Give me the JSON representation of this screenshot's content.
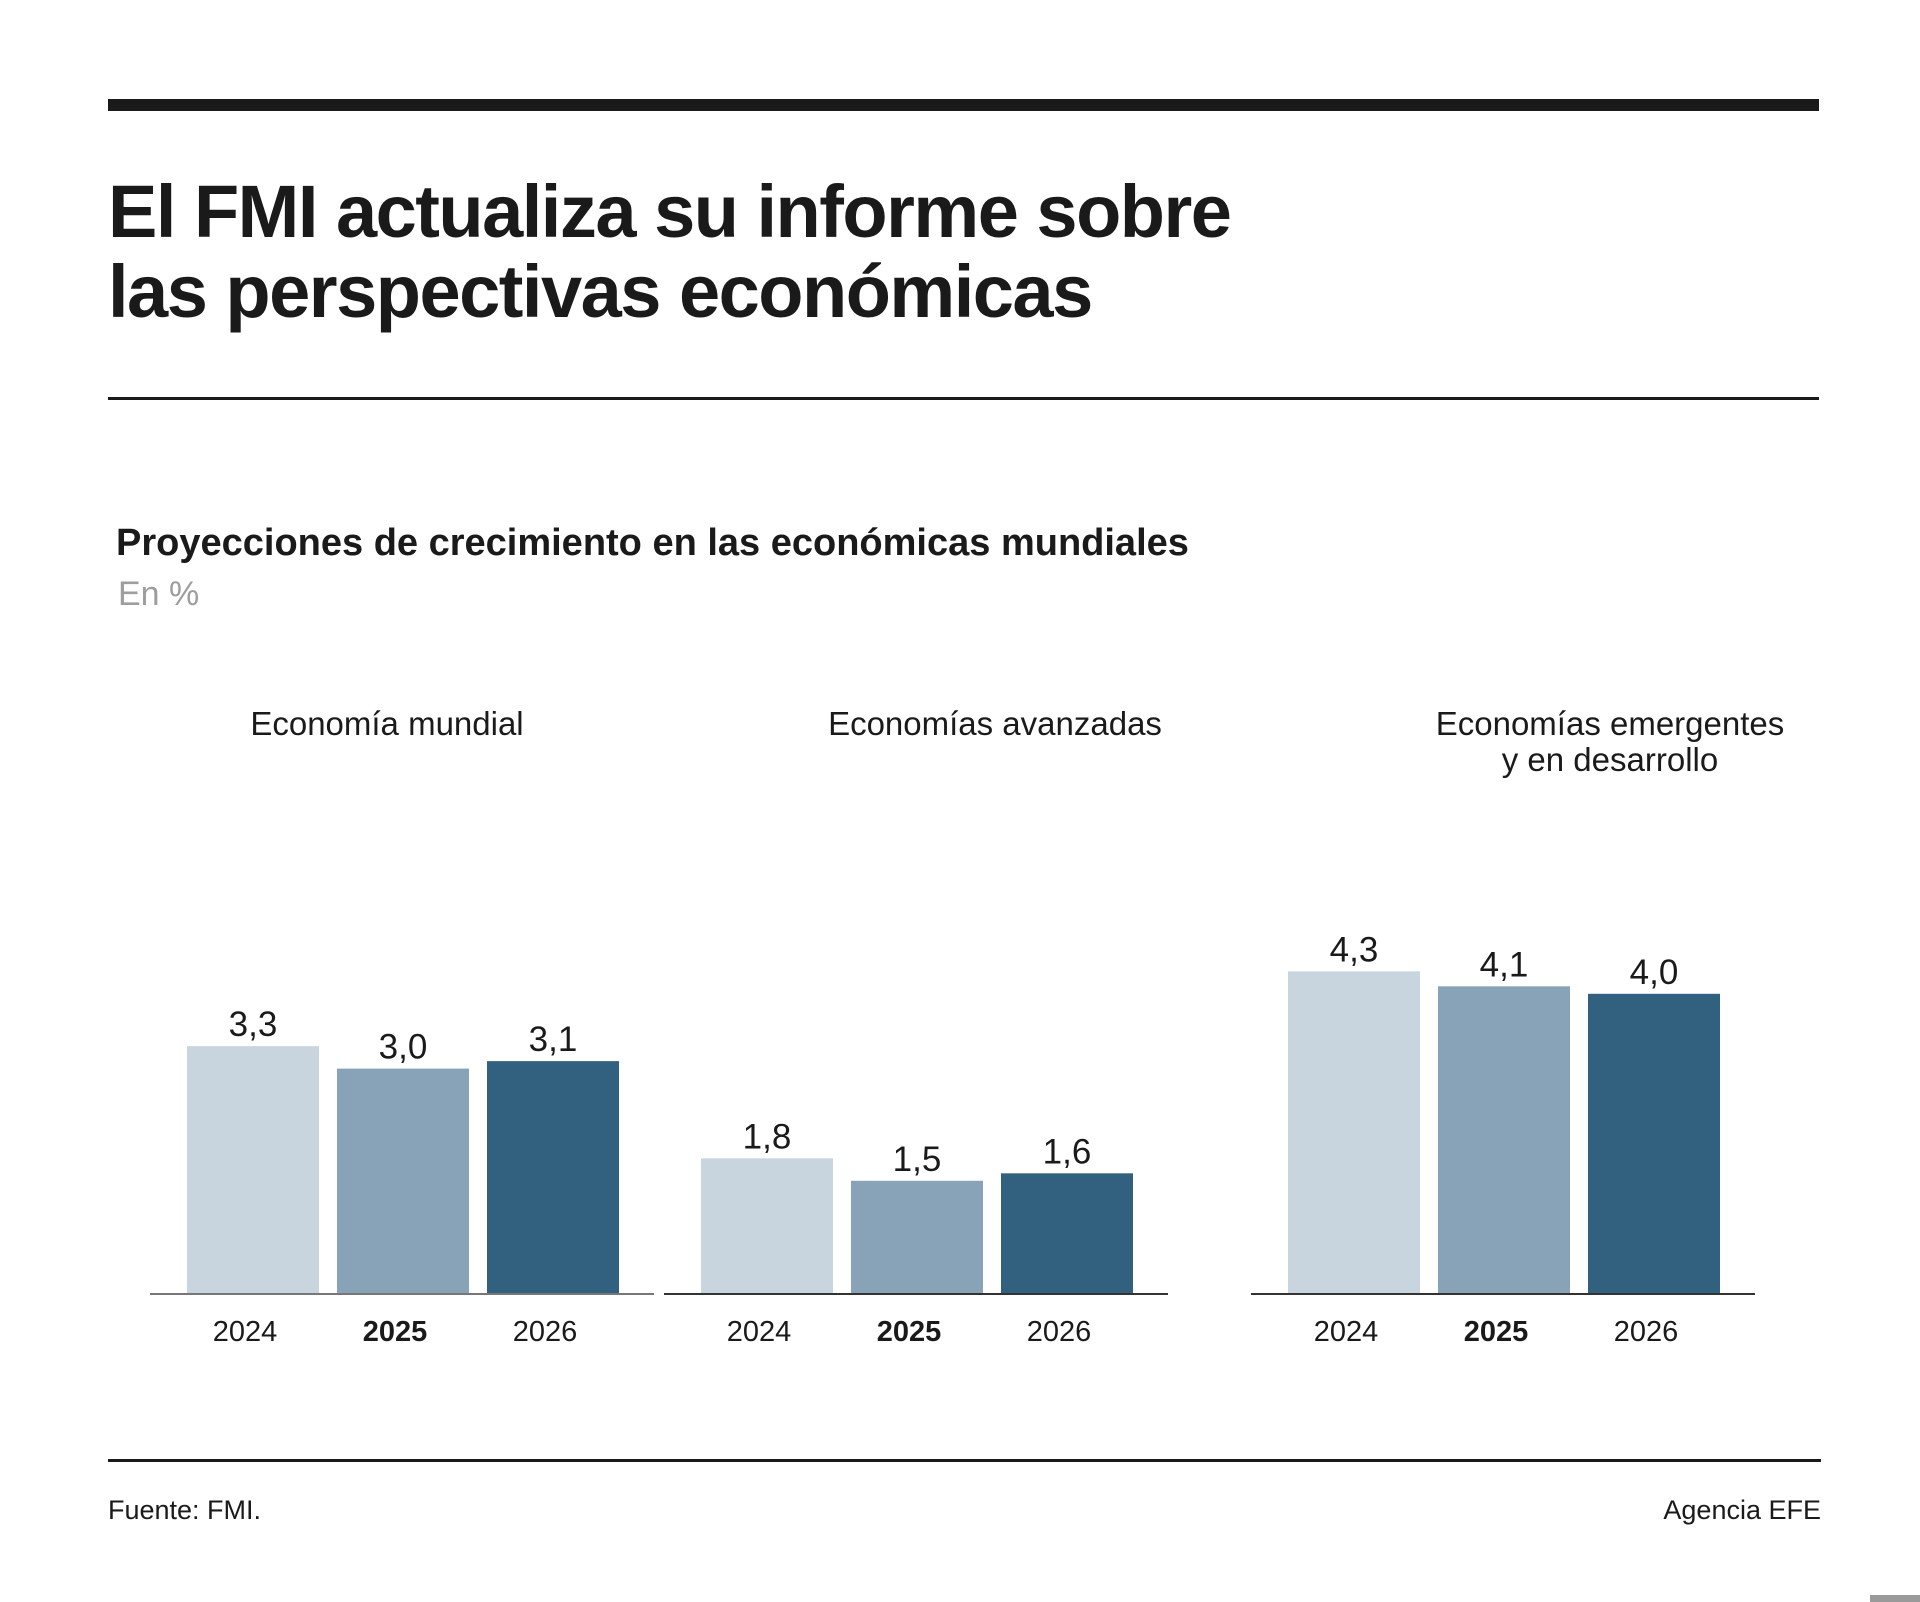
{
  "header": {
    "title_line1": "El FMI actualiza su informe sobre",
    "title_line2": "las perspectivas económicas"
  },
  "footer": {
    "source": "Fuente: FMI.",
    "credit": "Agencia EFE"
  },
  "colors": {
    "2024": "#c8d5de",
    "2025": "#88a2b7",
    "2026": "#326180",
    "rule": "#1a1a1a",
    "axis": "#333333"
  },
  "chart_data": {
    "type": "bar",
    "title": "Proyecciones de crecimiento en las económicas mundiales",
    "subtitle": "En %",
    "categories": [
      "2024",
      "2025",
      "2026"
    ],
    "highlight_category": "2025",
    "value_labels": true,
    "grid": false,
    "panels": [
      {
        "name": "Economía mundial",
        "values": [
          3.3,
          3.0,
          3.1
        ],
        "labels": [
          "3,3",
          "3,0",
          "3,1"
        ]
      },
      {
        "name": "Economías avanzadas",
        "values": [
          1.8,
          1.5,
          1.6
        ],
        "labels": [
          "1,8",
          "1,5",
          "1,6"
        ]
      },
      {
        "name": "Economías emergentes y en desarrollo",
        "values": [
          4.3,
          4.1,
          4.0
        ],
        "labels": [
          "4,3",
          "4,1",
          "4,0"
        ]
      }
    ]
  }
}
